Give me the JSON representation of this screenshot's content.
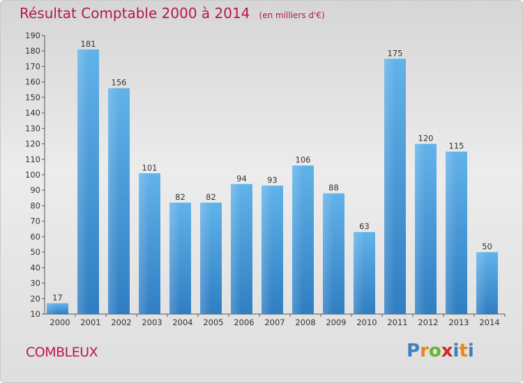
{
  "header": {
    "title": "Résultat Comptable 2000 à 2014",
    "subtitle": "(en milliers d'€)"
  },
  "footer": {
    "commune": "COMBLEUX",
    "logo": "Proxiti"
  },
  "colors": {
    "title": "#b5174c",
    "bar_top": "#62b2ea",
    "bar_bottom": "#2f7ec2",
    "axis": "#555555"
  },
  "chart_data": {
    "type": "bar",
    "title": "Résultat Comptable 2000 à 2014",
    "subtitle": "(en milliers d'€)",
    "xlabel": "",
    "ylabel": "",
    "categories": [
      "2000",
      "2001",
      "2002",
      "2003",
      "2004",
      "2005",
      "2006",
      "2007",
      "2008",
      "2009",
      "2010",
      "2011",
      "2012",
      "2013",
      "2014"
    ],
    "values": [
      17,
      181,
      156,
      101,
      82,
      82,
      94,
      93,
      106,
      88,
      63,
      175,
      120,
      115,
      50
    ],
    "ylim": [
      10,
      190
    ],
    "yticks": [
      10,
      20,
      30,
      40,
      50,
      60,
      70,
      80,
      90,
      100,
      110,
      120,
      130,
      140,
      150,
      160,
      170,
      180,
      190
    ],
    "grid": false,
    "legend": "none"
  }
}
